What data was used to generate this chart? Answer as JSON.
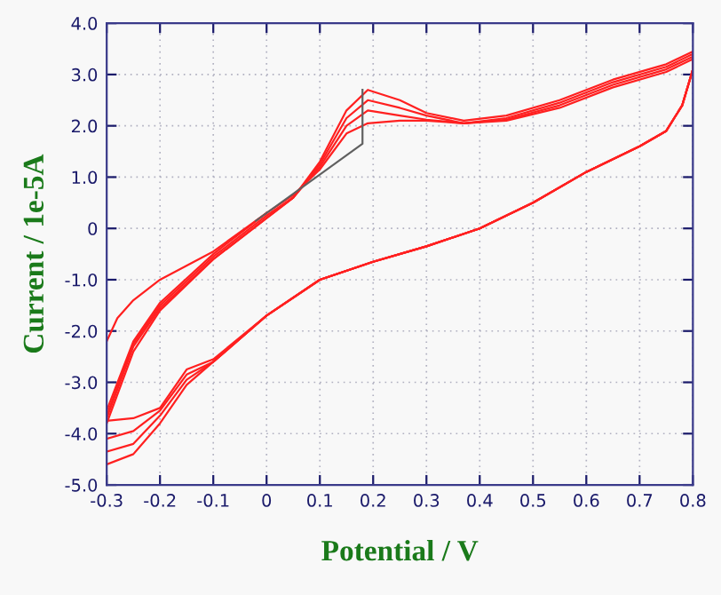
{
  "chart_data": {
    "type": "line",
    "xlabel": "Potential / V",
    "ylabel": "Current / 1e-5A",
    "xlim": [
      -0.3,
      0.8
    ],
    "xticks": [
      -0.3,
      -0.2,
      -0.1,
      0,
      0.1,
      0.2,
      0.3,
      0.4,
      0.5,
      0.6,
      0.7,
      0.8
    ],
    "ylim": [
      -5,
      4
    ],
    "yticks": [
      {
        "value": -5,
        "label": "-5.0"
      },
      {
        "value": -4,
        "label": "-4.0"
      },
      {
        "value": -3,
        "label": "-3.0"
      },
      {
        "value": -2,
        "label": "-2.0"
      },
      {
        "value": -1,
        "label": "-1.0"
      },
      0,
      {
        "value": 1,
        "label": "1.0"
      },
      {
        "value": 2,
        "label": "2.0"
      },
      {
        "value": 3,
        "label": "3.0"
      },
      {
        "value": 4,
        "label": "4.0"
      }
    ],
    "grid": true,
    "legend": false,
    "marker": "none",
    "line_style": "solid",
    "series": [
      {
        "color": "#ff2020",
        "x": [
          -0.3,
          -0.25,
          -0.2,
          -0.1,
          0,
          0.05,
          0.1,
          0.15,
          0.19,
          0.25,
          0.3,
          0.37,
          0.45,
          0.55,
          0.65,
          0.75,
          0.8,
          0.8,
          0.78,
          0.75,
          0.7,
          0.6,
          0.5,
          0.4,
          0.3,
          0.2,
          0.1,
          0,
          -0.1,
          -0.15,
          -0.2,
          -0.25,
          -0.3
        ],
        "values": [
          -3.8,
          -2.4,
          -1.6,
          -0.6,
          0.2,
          0.6,
          1.3,
          2.3,
          2.7,
          2.5,
          2.25,
          2.1,
          2.2,
          2.5,
          2.9,
          3.2,
          3.45,
          3.1,
          2.4,
          1.9,
          1.6,
          1.1,
          0.5,
          0.0,
          -0.35,
          -0.65,
          -1.0,
          -1.7,
          -2.6,
          -3.05,
          -3.8,
          -4.4,
          -4.6
        ]
      },
      {
        "color": "#ff2020",
        "x": [
          -0.3,
          -0.25,
          -0.2,
          -0.1,
          0,
          0.05,
          0.1,
          0.15,
          0.19,
          0.25,
          0.3,
          0.37,
          0.45,
          0.55,
          0.65,
          0.75,
          0.8,
          0.8,
          0.78,
          0.75,
          0.7,
          0.6,
          0.5,
          0.4,
          0.3,
          0.2,
          0.1,
          0,
          -0.1,
          -0.15,
          -0.2,
          -0.25,
          -0.3
        ],
        "values": [
          -3.7,
          -2.3,
          -1.55,
          -0.6,
          0.2,
          0.6,
          1.25,
          2.15,
          2.5,
          2.35,
          2.2,
          2.05,
          2.15,
          2.45,
          2.85,
          3.15,
          3.4,
          3.1,
          2.4,
          1.9,
          1.6,
          1.1,
          0.5,
          0.0,
          -0.35,
          -0.65,
          -1.0,
          -1.7,
          -2.6,
          -2.95,
          -3.65,
          -4.2,
          -4.35
        ]
      },
      {
        "color": "#ff2020",
        "x": [
          -0.3,
          -0.25,
          -0.2,
          -0.1,
          0,
          0.05,
          0.1,
          0.15,
          0.19,
          0.25,
          0.3,
          0.37,
          0.45,
          0.55,
          0.65,
          0.75,
          0.8,
          0.8,
          0.78,
          0.75,
          0.7,
          0.6,
          0.5,
          0.4,
          0.3,
          0.2,
          0.1,
          0,
          -0.1,
          -0.15,
          -0.2,
          -0.25,
          -0.3
        ],
        "values": [
          -3.65,
          -2.25,
          -1.5,
          -0.55,
          0.25,
          0.6,
          1.2,
          2.0,
          2.3,
          2.2,
          2.12,
          2.05,
          2.12,
          2.4,
          2.8,
          3.1,
          3.35,
          3.1,
          2.4,
          1.9,
          1.6,
          1.1,
          0.5,
          0.0,
          -0.35,
          -0.65,
          -1.0,
          -1.7,
          -2.6,
          -2.85,
          -3.55,
          -3.95,
          -4.1
        ]
      },
      {
        "color": "#ff2020",
        "x": [
          -0.3,
          -0.25,
          -0.2,
          -0.1,
          0,
          0.05,
          0.1,
          0.15,
          0.19,
          0.25,
          0.3,
          0.37,
          0.45,
          0.55,
          0.65,
          0.75,
          0.8,
          0.8,
          0.78,
          0.75,
          0.7,
          0.6,
          0.5,
          0.4,
          0.3,
          0.2,
          0.1,
          0,
          -0.1,
          -0.15,
          -0.2,
          -0.25,
          -0.3
        ],
        "values": [
          -3.55,
          -2.2,
          -1.45,
          -0.5,
          0.3,
          0.65,
          1.15,
          1.85,
          2.05,
          2.1,
          2.1,
          2.05,
          2.1,
          2.35,
          2.75,
          3.05,
          3.3,
          3.1,
          2.4,
          1.9,
          1.6,
          1.1,
          0.5,
          0.0,
          -0.35,
          -0.65,
          -1.0,
          -1.7,
          -2.55,
          -2.75,
          -3.5,
          -3.7,
          -3.75
        ]
      },
      {
        "color": "#ff2020",
        "x": [
          -0.3,
          -0.28,
          -0.25,
          -0.2,
          -0.1,
          0
        ],
        "values": [
          -2.2,
          -1.75,
          -1.4,
          -1.0,
          -0.45,
          0.3
        ]
      },
      {
        "color": "#606060",
        "x": [
          -0.02,
          0.18,
          0.18
        ],
        "values": [
          0.15,
          1.65,
          2.7
        ]
      }
    ]
  }
}
